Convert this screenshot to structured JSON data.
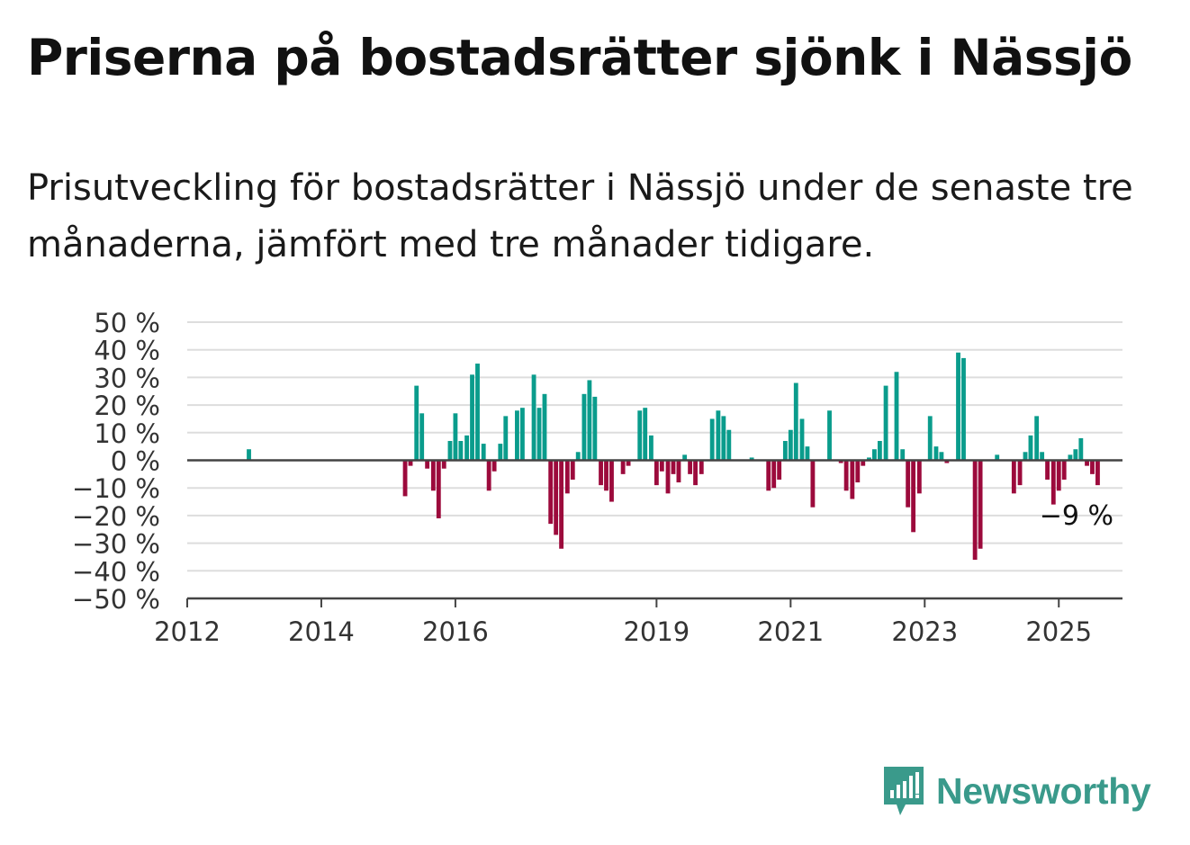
{
  "title": "Priserna på bostadsrätter sjönk i Nässjö",
  "subtitle": "Prisutveckling för bostadsrätter i Nässjö under de senaste tre månaderna, jämfört med tre månader tidigare.",
  "brand": {
    "name": "Newsworthy",
    "color": "#3a9a8b",
    "icon": "newsworthy-logo-icon"
  },
  "colors": {
    "positive": "#0a9c8c",
    "negative": "#9c0a3c",
    "grid": "#dddddd",
    "axis": "#444444"
  },
  "chart_data": {
    "type": "bar",
    "title": "",
    "xlabel": "",
    "ylabel": "",
    "ylim": [
      -50,
      50
    ],
    "y_ticks": [
      50,
      40,
      30,
      20,
      10,
      0,
      -10,
      -20,
      -30,
      -40,
      -50
    ],
    "y_tick_labels": [
      "50 %",
      "40 %",
      "30 %",
      "20 %",
      "10 %",
      "0 %",
      "−10 %",
      "−20 %",
      "−30 %",
      "−40 %",
      "−50 %"
    ],
    "x_ticks": [
      2012,
      2014,
      2016,
      2019,
      2021,
      2023,
      2025
    ],
    "x_tick_labels": [
      "2012",
      "2014",
      "2016",
      "2019",
      "2021",
      "2023",
      "2025"
    ],
    "grid": true,
    "last_value_label": "−9 %",
    "unit": "%",
    "bars": [
      {
        "x": 2012.92,
        "y": 4
      },
      {
        "x": 2015.25,
        "y": -13
      },
      {
        "x": 2015.33,
        "y": -2
      },
      {
        "x": 2015.42,
        "y": 27
      },
      {
        "x": 2015.5,
        "y": 17
      },
      {
        "x": 2015.58,
        "y": -3
      },
      {
        "x": 2015.67,
        "y": -11
      },
      {
        "x": 2015.75,
        "y": -21
      },
      {
        "x": 2015.83,
        "y": -3
      },
      {
        "x": 2015.92,
        "y": 7
      },
      {
        "x": 2016.0,
        "y": 17
      },
      {
        "x": 2016.08,
        "y": 7
      },
      {
        "x": 2016.17,
        "y": 9
      },
      {
        "x": 2016.25,
        "y": 31
      },
      {
        "x": 2016.33,
        "y": 35
      },
      {
        "x": 2016.42,
        "y": 6
      },
      {
        "x": 2016.5,
        "y": -11
      },
      {
        "x": 2016.58,
        "y": -4
      },
      {
        "x": 2016.67,
        "y": 6
      },
      {
        "x": 2016.75,
        "y": 16
      },
      {
        "x": 2016.92,
        "y": 18
      },
      {
        "x": 2017.0,
        "y": 19
      },
      {
        "x": 2017.17,
        "y": 31
      },
      {
        "x": 2017.25,
        "y": 19
      },
      {
        "x": 2017.33,
        "y": 24
      },
      {
        "x": 2017.42,
        "y": -23
      },
      {
        "x": 2017.5,
        "y": -27
      },
      {
        "x": 2017.58,
        "y": -32
      },
      {
        "x": 2017.67,
        "y": -12
      },
      {
        "x": 2017.75,
        "y": -7
      },
      {
        "x": 2017.83,
        "y": 3
      },
      {
        "x": 2017.92,
        "y": 24
      },
      {
        "x": 2018.0,
        "y": 29
      },
      {
        "x": 2018.08,
        "y": 23
      },
      {
        "x": 2018.17,
        "y": -9
      },
      {
        "x": 2018.25,
        "y": -11
      },
      {
        "x": 2018.33,
        "y": -15
      },
      {
        "x": 2018.5,
        "y": -5
      },
      {
        "x": 2018.58,
        "y": -2
      },
      {
        "x": 2018.75,
        "y": 18
      },
      {
        "x": 2018.83,
        "y": 19
      },
      {
        "x": 2018.92,
        "y": 9
      },
      {
        "x": 2019.0,
        "y": -9
      },
      {
        "x": 2019.08,
        "y": -4
      },
      {
        "x": 2019.17,
        "y": -12
      },
      {
        "x": 2019.25,
        "y": -5
      },
      {
        "x": 2019.33,
        "y": -8
      },
      {
        "x": 2019.42,
        "y": 2
      },
      {
        "x": 2019.5,
        "y": -5
      },
      {
        "x": 2019.58,
        "y": -9
      },
      {
        "x": 2019.67,
        "y": -5
      },
      {
        "x": 2019.83,
        "y": 15
      },
      {
        "x": 2019.92,
        "y": 18
      },
      {
        "x": 2020.0,
        "y": 16
      },
      {
        "x": 2020.08,
        "y": 11
      },
      {
        "x": 2020.42,
        "y": 1
      },
      {
        "x": 2020.67,
        "y": -11
      },
      {
        "x": 2020.75,
        "y": -10
      },
      {
        "x": 2020.83,
        "y": -7
      },
      {
        "x": 2020.92,
        "y": 7
      },
      {
        "x": 2021.0,
        "y": 11
      },
      {
        "x": 2021.08,
        "y": 28
      },
      {
        "x": 2021.17,
        "y": 15
      },
      {
        "x": 2021.25,
        "y": 5
      },
      {
        "x": 2021.33,
        "y": -17
      },
      {
        "x": 2021.58,
        "y": 18
      },
      {
        "x": 2021.75,
        "y": -1
      },
      {
        "x": 2021.83,
        "y": -11
      },
      {
        "x": 2021.92,
        "y": -14
      },
      {
        "x": 2022.0,
        "y": -8
      },
      {
        "x": 2022.08,
        "y": -2
      },
      {
        "x": 2022.17,
        "y": 1
      },
      {
        "x": 2022.25,
        "y": 4
      },
      {
        "x": 2022.33,
        "y": 7
      },
      {
        "x": 2022.42,
        "y": 27
      },
      {
        "x": 2022.58,
        "y": 32
      },
      {
        "x": 2022.67,
        "y": 4
      },
      {
        "x": 2022.75,
        "y": -17
      },
      {
        "x": 2022.83,
        "y": -26
      },
      {
        "x": 2022.92,
        "y": -12
      },
      {
        "x": 2023.08,
        "y": 16
      },
      {
        "x": 2023.17,
        "y": 5
      },
      {
        "x": 2023.25,
        "y": 3
      },
      {
        "x": 2023.33,
        "y": -1
      },
      {
        "x": 2023.5,
        "y": 39
      },
      {
        "x": 2023.58,
        "y": 37
      },
      {
        "x": 2023.75,
        "y": -36
      },
      {
        "x": 2023.83,
        "y": -32
      },
      {
        "x": 2024.08,
        "y": 2
      },
      {
        "x": 2024.33,
        "y": -12
      },
      {
        "x": 2024.42,
        "y": -9
      },
      {
        "x": 2024.5,
        "y": 3
      },
      {
        "x": 2024.58,
        "y": 9
      },
      {
        "x": 2024.67,
        "y": 16
      },
      {
        "x": 2024.75,
        "y": 3
      },
      {
        "x": 2024.83,
        "y": -7
      },
      {
        "x": 2024.92,
        "y": -16
      },
      {
        "x": 2025.0,
        "y": -11
      },
      {
        "x": 2025.08,
        "y": -7
      },
      {
        "x": 2025.17,
        "y": 2
      },
      {
        "x": 2025.25,
        "y": 4
      },
      {
        "x": 2025.33,
        "y": 8
      },
      {
        "x": 2025.42,
        "y": -2
      },
      {
        "x": 2025.5,
        "y": -5
      },
      {
        "x": 2025.58,
        "y": -9
      }
    ]
  }
}
